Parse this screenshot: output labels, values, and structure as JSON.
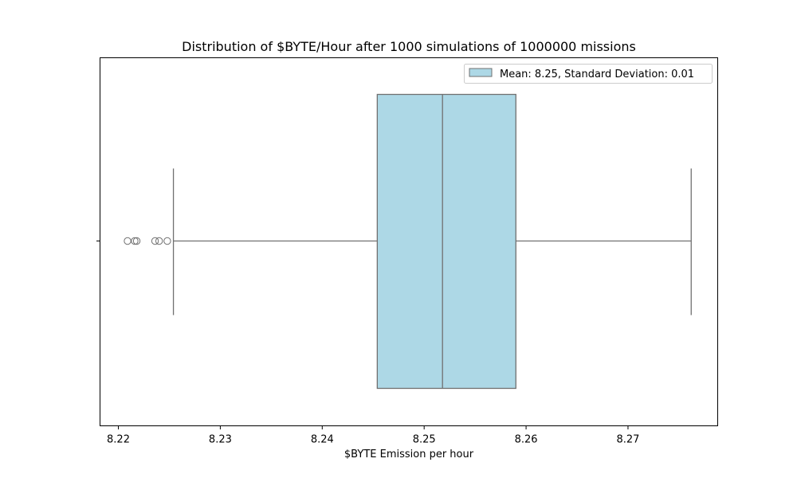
{
  "chart_data": {
    "type": "box",
    "title": "Distribution of $BYTE/Hour after 1000 simulations of 1000000 missions",
    "xlabel": "$BYTE Emission per hour",
    "ylabel": "",
    "xlim": [
      8.2182,
      8.2788
    ],
    "xticks": [
      8.22,
      8.23,
      8.24,
      8.25,
      8.26,
      8.27
    ],
    "xtick_labels": [
      "8.22",
      "8.23",
      "8.24",
      "8.25",
      "8.26",
      "8.27"
    ],
    "grid": false,
    "legend": {
      "placement": "top-right",
      "label": "Mean: 8.25, Standard Deviation: 0.01"
    },
    "box": {
      "whisker_low": 8.2254,
      "q1": 8.2454,
      "median": 8.2518,
      "q3": 8.259,
      "whisker_high": 8.2762,
      "outliers": [
        8.2209,
        8.2216,
        8.2218,
        8.2236,
        8.224,
        8.2248
      ]
    },
    "colors": {
      "box_fill": "#add8e6",
      "box_edge": "#707070",
      "axis": "#000000"
    }
  }
}
